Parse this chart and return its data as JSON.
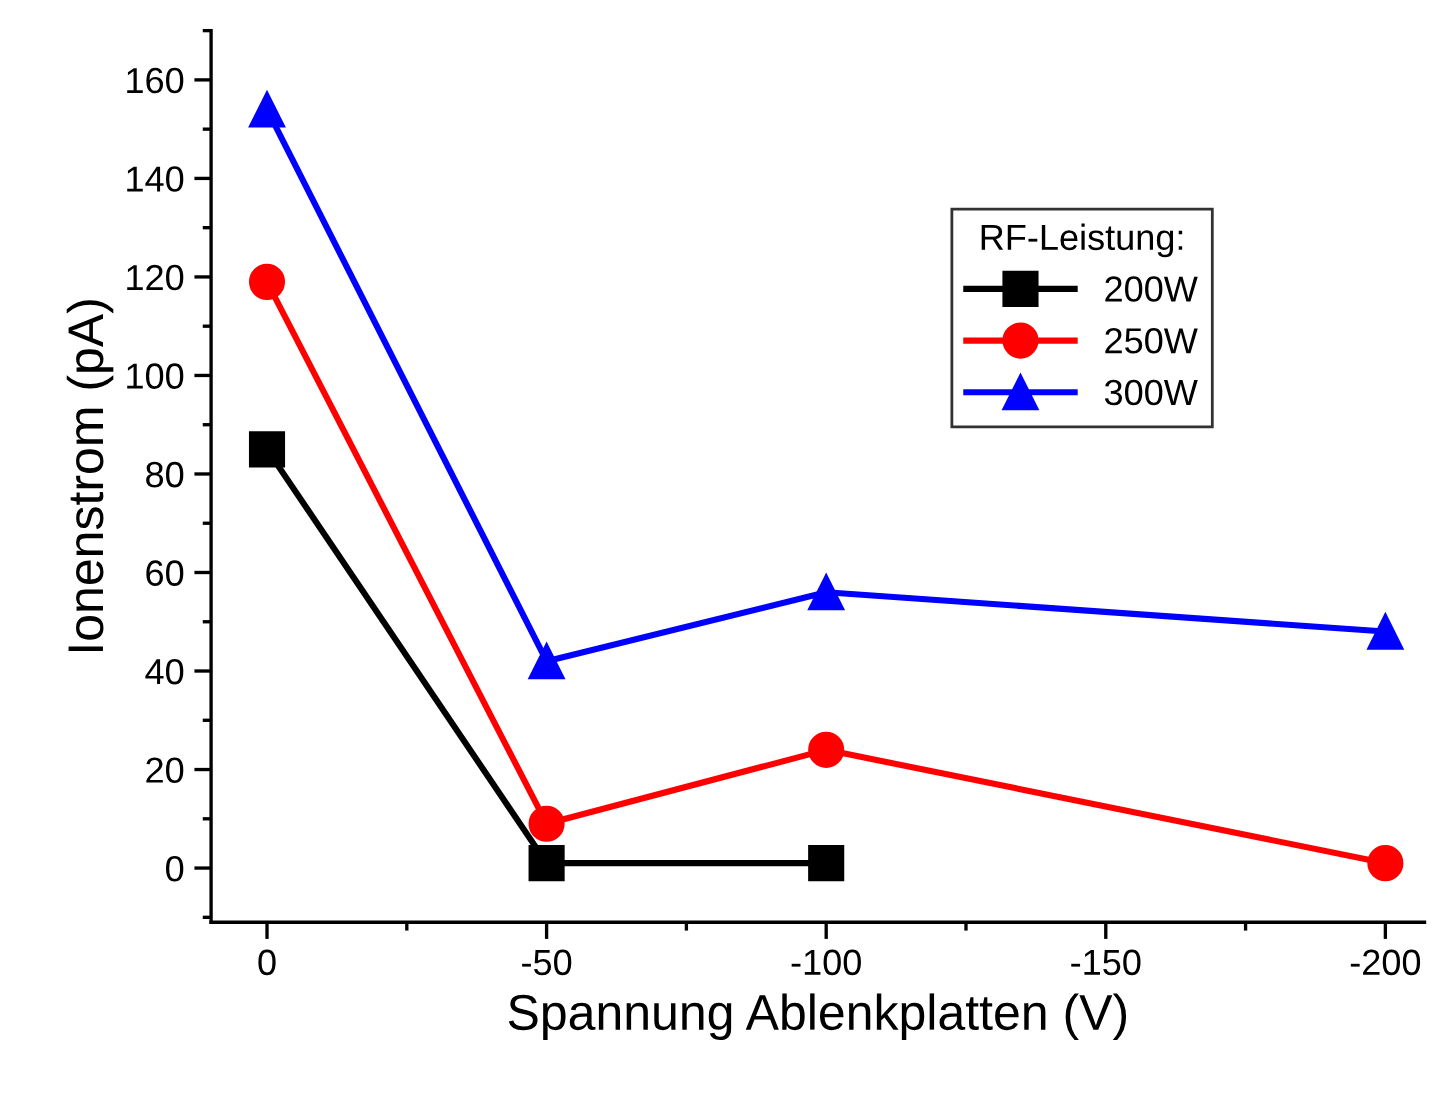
{
  "chart_data": {
    "type": "line",
    "xlabel": "Spannung Ablenkplatten (V)",
    "ylabel": "Ionenstrom (pA)",
    "legend_title": "RF-Leistung:",
    "legend": "top right",
    "xlim": [
      10,
      -207
    ],
    "xticks": [
      {
        "value": 0,
        "label": "0"
      },
      {
        "value": -50,
        "label": "-50"
      },
      {
        "value": -100,
        "label": "-100"
      },
      {
        "value": -150,
        "label": "-150"
      },
      {
        "value": -200,
        "label": "-200"
      }
    ],
    "ylim": [
      -11,
      170
    ],
    "yticks": [
      0,
      20,
      40,
      60,
      80,
      100,
      120,
      140,
      160
    ],
    "grid": false,
    "series": [
      {
        "name": "200W",
        "color": "#000000",
        "marker": "square",
        "x": [
          0,
          -50,
          -100
        ],
        "values": [
          85,
          1,
          1
        ]
      },
      {
        "name": "250W",
        "color": "#ff0000",
        "marker": "circle",
        "x": [
          0,
          -50,
          -100,
          -200
        ],
        "values": [
          119,
          9,
          24,
          1
        ]
      },
      {
        "name": "300W",
        "color": "#0000ff",
        "marker": "triangle",
        "x": [
          0,
          -50,
          -100,
          -200
        ],
        "values": [
          154,
          42,
          56,
          48
        ]
      }
    ]
  }
}
